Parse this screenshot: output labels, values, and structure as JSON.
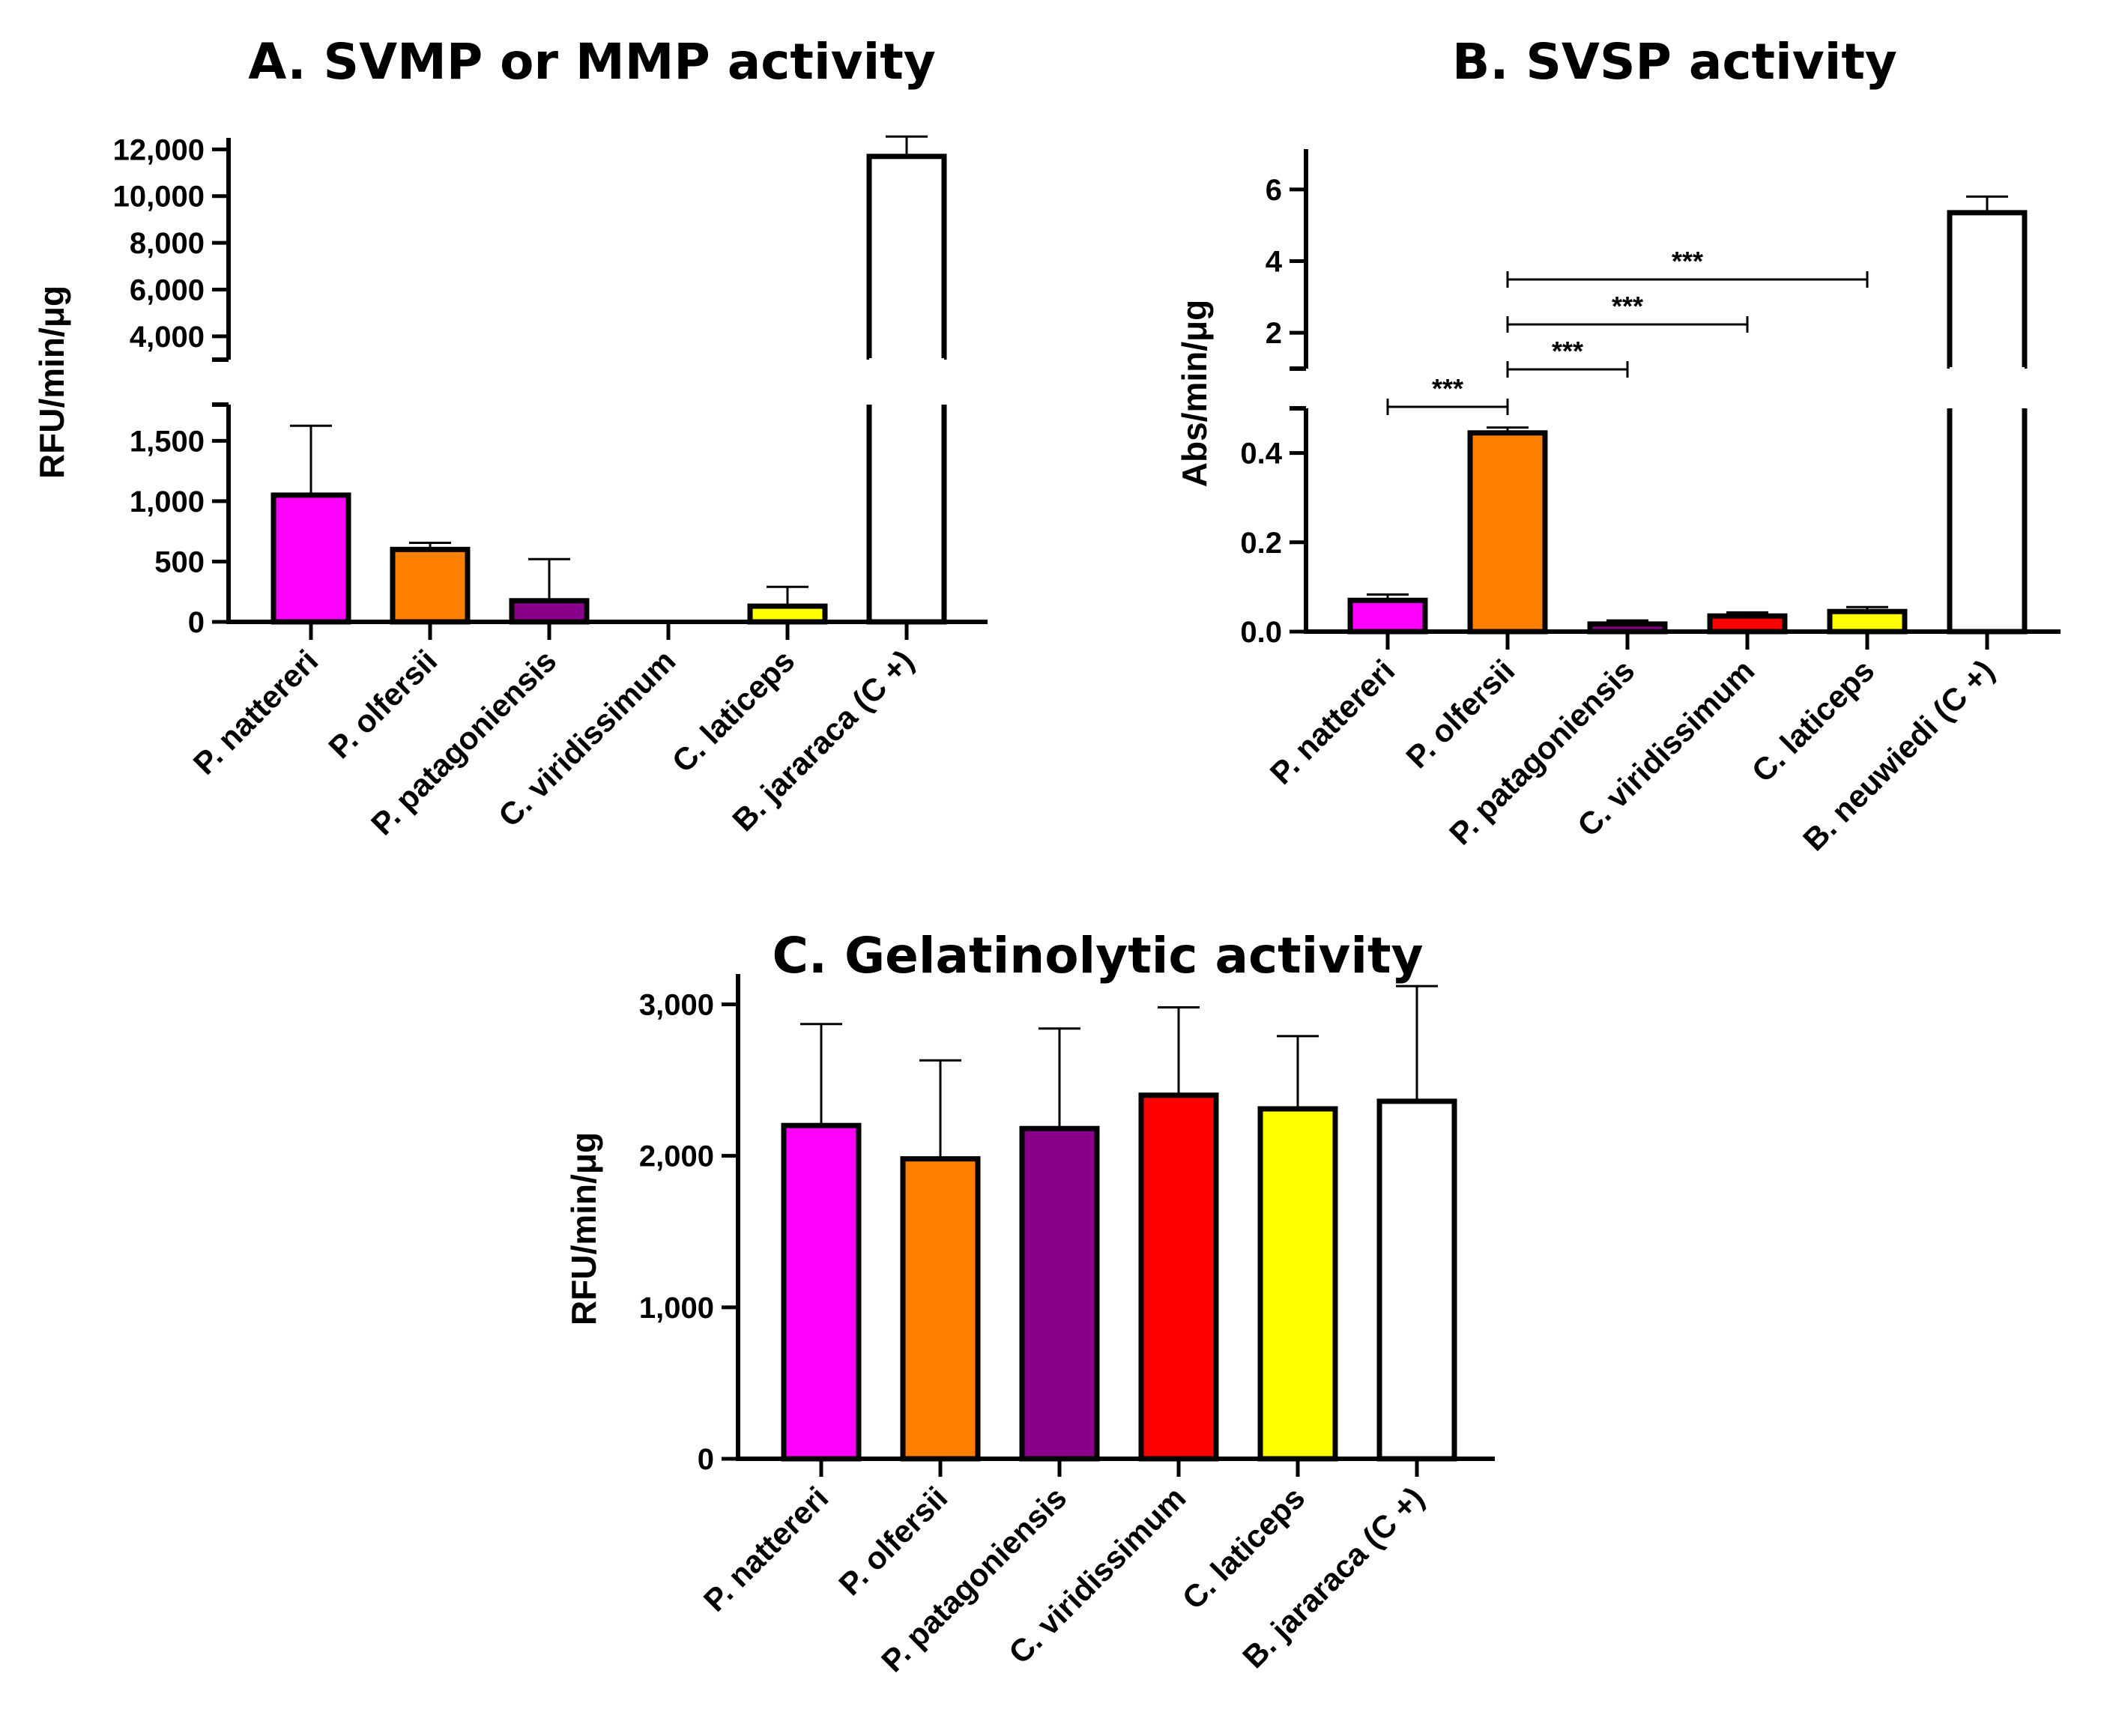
{
  "chart_data": [
    {
      "id": "A",
      "type": "bar",
      "title": "A. SVMP or MMP activity",
      "ylabel": "RFU/min/μg",
      "xlabel": "",
      "categories": [
        "P. nattereri",
        "P. olfersii",
        "P. patagoniensis",
        "C. viridissimum",
        "C. laticeps",
        "B. jararaca (C +)"
      ],
      "colors": [
        "#FF00FF",
        "#FF8000",
        "#8B008B",
        "#FF0000",
        "#FFFF00",
        "#FFFFFF"
      ],
      "values": [
        1050,
        600,
        175,
        0,
        130,
        11700
      ],
      "error": [
        575,
        55,
        345,
        0,
        160,
        850
      ],
      "broken_axis": true,
      "lower_segment": {
        "ylim": [
          0,
          1800
        ],
        "ticks": [
          0,
          500,
          1000,
          1500
        ],
        "tick_labels": [
          "0",
          "500",
          "1,000",
          "1,500"
        ]
      },
      "upper_segment": {
        "ylim": [
          3000,
          12300
        ],
        "ticks": [
          4000,
          6000,
          8000,
          10000,
          12000
        ],
        "tick_labels": [
          "4,000",
          "6,000",
          "8,000",
          "10,000",
          "12,000"
        ]
      },
      "significance": []
    },
    {
      "id": "B",
      "type": "bar",
      "title": "B. SVSP activity",
      "ylabel": "Abs/min/μg",
      "xlabel": "",
      "categories": [
        "P. nattereri",
        "P. olfersii",
        "P. patagoniensis",
        "C. viridissimum",
        "C. laticeps",
        "B. neuwiedi (C +)"
      ],
      "colors": [
        "#FF00FF",
        "#FF8000",
        "#8B008B",
        "#FF0000",
        "#FFFF00",
        "#FFFFFF"
      ],
      "values": [
        0.07,
        0.445,
        0.017,
        0.035,
        0.045,
        5.35
      ],
      "error": [
        0.013,
        0.012,
        0.008,
        0.008,
        0.01,
        0.45
      ],
      "broken_axis": true,
      "lower_segment": {
        "ylim": [
          0,
          0.5
        ],
        "ticks": [
          0,
          0.2,
          0.4
        ],
        "tick_labels": [
          "0.0",
          "0.2",
          "0.4"
        ]
      },
      "upper_segment": {
        "ylim": [
          1,
          7
        ],
        "ticks": [
          2,
          4,
          6
        ],
        "tick_labels": [
          "2",
          "4",
          "6"
        ]
      },
      "significance": [
        {
          "from": 0,
          "to": 1,
          "label": "***"
        },
        {
          "from": 1,
          "to": 2,
          "label": "***"
        },
        {
          "from": 1,
          "to": 3,
          "label": "***"
        },
        {
          "from": 1,
          "to": 4,
          "label": "***"
        }
      ]
    },
    {
      "id": "C",
      "type": "bar",
      "title": "C. Gelatinolytic activity",
      "ylabel": "RFU/min/μg",
      "xlabel": "",
      "categories": [
        "P. nattereri",
        "P. olfersii",
        "P. patagoniensis",
        "C. viridissimum",
        "C. laticeps",
        "B. jararaca (C +)"
      ],
      "colors": [
        "#FF00FF",
        "#FF8000",
        "#8B008B",
        "#FF0000",
        "#FFFF00",
        "#FFFFFF"
      ],
      "values": [
        2200,
        1980,
        2180,
        2400,
        2310,
        2360
      ],
      "error": [
        670,
        650,
        660,
        580,
        480,
        760
      ],
      "broken_axis": false,
      "ylim": [
        0,
        3200
      ],
      "ticks": [
        0,
        1000,
        2000,
        3000
      ],
      "tick_labels": [
        "0",
        "1,000",
        "2,000",
        "3,000"
      ],
      "significance": []
    }
  ]
}
